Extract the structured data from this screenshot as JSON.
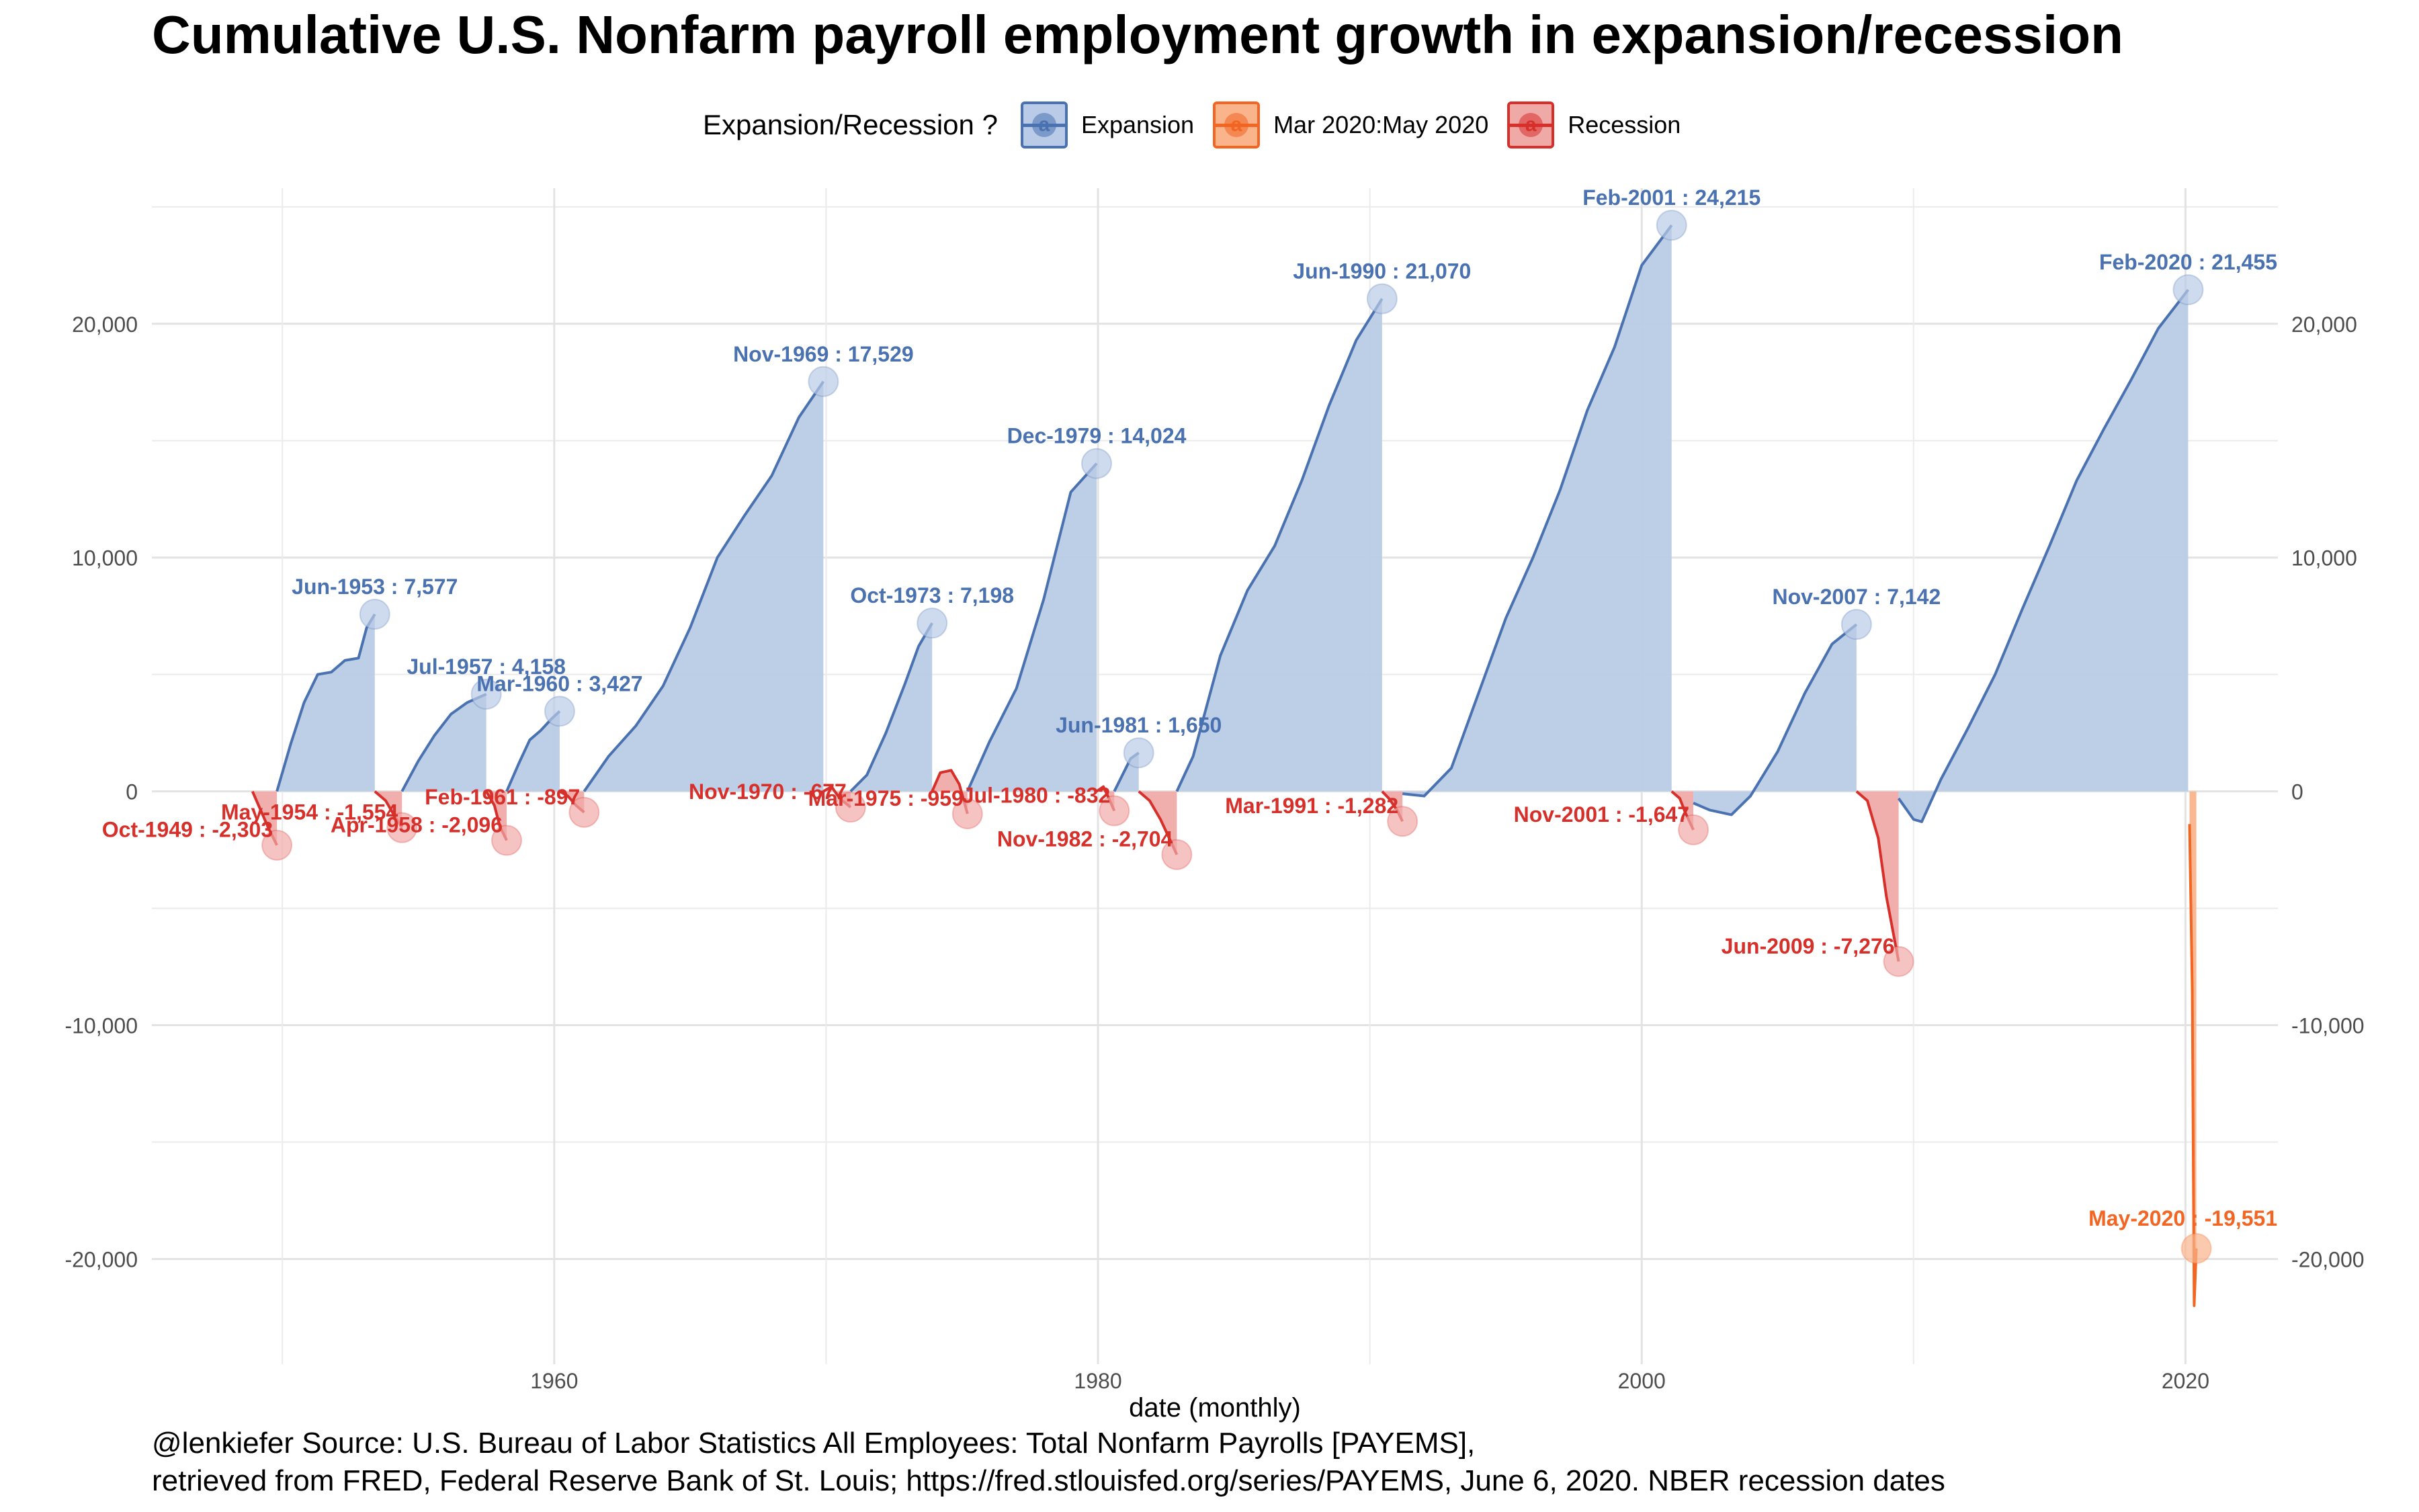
{
  "title": "Cumulative U.S. Nonfarm payroll employment growth in expansion/recession",
  "legend": {
    "title": "Expansion/Recession ?",
    "items": [
      {
        "label": "Expansion",
        "color": "#4a72b0",
        "fill": "#b9cbe6",
        "letter": "a"
      },
      {
        "label": "Mar 2020:May 2020",
        "color": "#f26522",
        "fill": "#f9b48c",
        "letter": "a"
      },
      {
        "label": "Recession",
        "color": "#d7302b",
        "fill": "#efaaa8",
        "letter": "a"
      }
    ]
  },
  "caption": {
    "line1": "@lenkiefer Source: U.S. Bureau of Labor Statistics All Employees: Total Nonfarm Payrolls [PAYEMS],",
    "line2": "retrieved from FRED, Federal Reserve Bank of St. Louis; https://fred.stlouisfed.org/series/PAYEMS, June 6, 2020. NBER recession dates"
  },
  "chart_data": {
    "type": "area",
    "title": "Cumulative U.S. Nonfarm payroll employment growth in expansion/recession",
    "xlabel": "date (monthly)",
    "ylabel": "",
    "xlim": [
      1945.2,
      2023.4
    ],
    "ylim": [
      -24500,
      25800
    ],
    "x_ticks": [
      1960,
      1980,
      2000,
      2020
    ],
    "x_tick_labels": [
      "1960",
      "1980",
      "2000",
      "2020"
    ],
    "y_ticks": [
      -20000,
      -10000,
      0,
      10000,
      20000
    ],
    "y_tick_labels": [
      "-20,000",
      "-10,000",
      "0",
      "10,000",
      "20,000"
    ],
    "grid": true,
    "legend_position": "top",
    "colors": {
      "Expansion": "#4a72b0",
      "Mar 2020:May 2020": "#f26522",
      "Recession": "#d7302b"
    },
    "fills": {
      "Expansion": "#b9cbe6",
      "Mar 2020:May 2020": "#f9b48c",
      "Recession": "#efaaa8"
    },
    "series": [
      {
        "name": "Recession",
        "x": [
          1948.9,
          1949.2,
          1949.5,
          1949.8
        ],
        "y": [
          0,
          -800,
          -1600,
          -2303
        ]
      },
      {
        "name": "Expansion",
        "x": [
          1949.8,
          1950.3,
          1950.8,
          1951.3,
          1951.8,
          1952.3,
          1952.8,
          1953.1,
          1953.4
        ],
        "y": [
          0,
          2000,
          3800,
          5000,
          5100,
          5600,
          5700,
          7000,
          7577
        ]
      },
      {
        "name": "Recession",
        "x": [
          1953.4,
          1953.8,
          1954.1,
          1954.4
        ],
        "y": [
          0,
          -400,
          -1000,
          -1554
        ]
      },
      {
        "name": "Expansion",
        "x": [
          1954.4,
          1955.0,
          1955.6,
          1956.2,
          1956.8,
          1957.5
        ],
        "y": [
          0,
          1300,
          2400,
          3300,
          3800,
          4158
        ]
      },
      {
        "name": "Recession",
        "x": [
          1957.5,
          1957.8,
          1958.0,
          1958.25
        ],
        "y": [
          0,
          -600,
          -1500,
          -2096
        ]
      },
      {
        "name": "Expansion",
        "x": [
          1958.25,
          1958.7,
          1959.1,
          1959.5,
          1959.9,
          1960.2
        ],
        "y": [
          0,
          1200,
          2200,
          2600,
          3100,
          3427
        ]
      },
      {
        "name": "Recession",
        "x": [
          1960.2,
          1960.5,
          1960.8,
          1961.1
        ],
        "y": [
          0,
          -200,
          -600,
          -897
        ]
      },
      {
        "name": "Expansion",
        "x": [
          1961.1,
          1962,
          1963,
          1964,
          1965,
          1966,
          1967,
          1968,
          1969,
          1969.9
        ],
        "y": [
          0,
          1500,
          2800,
          4500,
          7000,
          10000,
          11800,
          13500,
          16000,
          17529
        ]
      },
      {
        "name": "Recession",
        "x": [
          1969.9,
          1970.2,
          1970.5,
          1970.9
        ],
        "y": [
          0,
          200,
          -300,
          -677
        ]
      },
      {
        "name": "Expansion",
        "x": [
          1970.9,
          1971.5,
          1972.2,
          1972.9,
          1973.4,
          1973.9
        ],
        "y": [
          0,
          700,
          2500,
          4600,
          6200,
          7198
        ]
      },
      {
        "name": "Recession",
        "x": [
          1973.9,
          1974.2,
          1974.6,
          1974.9,
          1975.2
        ],
        "y": [
          0,
          800,
          900,
          300,
          -959
        ]
      },
      {
        "name": "Expansion",
        "x": [
          1975.2,
          1976,
          1977,
          1978,
          1979,
          1979.95
        ],
        "y": [
          0,
          2100,
          4400,
          8200,
          12800,
          14024
        ]
      },
      {
        "name": "Recession",
        "x": [
          1979.95,
          1980.2,
          1980.4,
          1980.6
        ],
        "y": [
          0,
          200,
          -300,
          -832
        ]
      },
      {
        "name": "Expansion",
        "x": [
          1980.6,
          1980.9,
          1981.2,
          1981.5
        ],
        "y": [
          0,
          700,
          1400,
          1650
        ]
      },
      {
        "name": "Recession",
        "x": [
          1981.5,
          1981.9,
          1982.3,
          1982.7,
          1982.9
        ],
        "y": [
          0,
          -400,
          -1200,
          -2200,
          -2704
        ]
      },
      {
        "name": "Expansion",
        "x": [
          1982.9,
          1983.5,
          1984.5,
          1985.5,
          1986.5,
          1987.5,
          1988.5,
          1989.5,
          1990.45
        ],
        "y": [
          0,
          1500,
          5800,
          8600,
          10500,
          13300,
          16500,
          19300,
          21070
        ]
      },
      {
        "name": "Recession",
        "x": [
          1990.45,
          1990.7,
          1991.0,
          1991.2
        ],
        "y": [
          0,
          -300,
          -800,
          -1282
        ]
      },
      {
        "name": "Expansion",
        "x": [
          1991.2,
          1992,
          1993,
          1994,
          1995,
          1996,
          1997,
          1998,
          1999,
          2000,
          2001.1
        ],
        "y": [
          -100,
          -200,
          1000,
          4200,
          7400,
          10000,
          12900,
          16300,
          19000,
          22500,
          24215
        ]
      },
      {
        "name": "Recession",
        "x": [
          2001.1,
          2001.4,
          2001.6,
          2001.9
        ],
        "y": [
          0,
          -300,
          -900,
          -1647
        ]
      },
      {
        "name": "Expansion",
        "x": [
          2001.9,
          2002.5,
          2003.3,
          2004,
          2005,
          2006,
          2007,
          2007.9
        ],
        "y": [
          -500,
          -800,
          -1000,
          -200,
          1700,
          4200,
          6300,
          7142
        ]
      },
      {
        "name": "Recession",
        "x": [
          2007.9,
          2008.3,
          2008.7,
          2009.0,
          2009.45
        ],
        "y": [
          0,
          -400,
          -2000,
          -4500,
          -7276
        ]
      },
      {
        "name": "Expansion",
        "x": [
          2009.45,
          2010,
          2010.3,
          2011,
          2012,
          2013,
          2014,
          2015,
          2016,
          2017,
          2018,
          2019,
          2020.1
        ],
        "y": [
          -300,
          -1200,
          -1300,
          500,
          2700,
          5000,
          7800,
          10500,
          13300,
          15500,
          17600,
          19800,
          21455
        ]
      },
      {
        "name": "Mar 2020:May 2020",
        "x": [
          2020.15,
          2020.25,
          2020.32,
          2020.4
        ],
        "y": [
          -1400,
          -8500,
          -22000,
          -19551
        ]
      }
    ],
    "annotations": [
      {
        "label": "Oct-1949 : -2,303",
        "x": 1949.8,
        "y": -2303,
        "type": "Recession"
      },
      {
        "label": "Jun-1953 : 7,577",
        "x": 1953.4,
        "y": 7577,
        "type": "Expansion"
      },
      {
        "label": "May-1954 : -1,554",
        "x": 1954.4,
        "y": -1554,
        "type": "Recession"
      },
      {
        "label": "Jul-1957 : 4,158",
        "x": 1957.5,
        "y": 4158,
        "type": "Expansion"
      },
      {
        "label": "Apr-1958 : -2,096",
        "x": 1958.25,
        "y": -2096,
        "type": "Recession"
      },
      {
        "label": "Mar-1960 : 3,427",
        "x": 1960.2,
        "y": 3427,
        "type": "Expansion"
      },
      {
        "label": "Feb-1961 : -897",
        "x": 1961.1,
        "y": -897,
        "type": "Recession"
      },
      {
        "label": "Nov-1969 : 17,529",
        "x": 1969.9,
        "y": 17529,
        "type": "Expansion"
      },
      {
        "label": "Nov-1970 : -677",
        "x": 1970.9,
        "y": -677,
        "type": "Recession"
      },
      {
        "label": "Oct-1973 : 7,198",
        "x": 1973.9,
        "y": 7198,
        "type": "Expansion"
      },
      {
        "label": "Mar-1975 : -959",
        "x": 1975.2,
        "y": -959,
        "type": "Recession"
      },
      {
        "label": "Dec-1979 : 14,024",
        "x": 1979.95,
        "y": 14024,
        "type": "Expansion"
      },
      {
        "label": "Jul-1980 : -832",
        "x": 1980.6,
        "y": -832,
        "type": "Recession"
      },
      {
        "label": "Jun-1981 : 1,650",
        "x": 1981.5,
        "y": 1650,
        "type": "Expansion"
      },
      {
        "label": "Nov-1982 : -2,704",
        "x": 1982.9,
        "y": -2704,
        "type": "Recession"
      },
      {
        "label": "Jun-1990 : 21,070",
        "x": 1990.45,
        "y": 21070,
        "type": "Expansion"
      },
      {
        "label": "Mar-1991 : -1,282",
        "x": 1991.2,
        "y": -1282,
        "type": "Recession"
      },
      {
        "label": "Feb-2001 : 24,215",
        "x": 2001.1,
        "y": 24215,
        "type": "Expansion"
      },
      {
        "label": "Nov-2001 : -1,647",
        "x": 2001.9,
        "y": -1647,
        "type": "Recession"
      },
      {
        "label": "Nov-2007 : 7,142",
        "x": 2007.9,
        "y": 7142,
        "type": "Expansion"
      },
      {
        "label": "Jun-2009 : -7,276",
        "x": 2009.45,
        "y": -7276,
        "type": "Recession"
      },
      {
        "label": "Feb-2020 : 21,455",
        "x": 2020.1,
        "y": 21455,
        "type": "Expansion"
      },
      {
        "label": "May-2020 : -19,551",
        "x": 2020.4,
        "y": -19551,
        "type": "Mar 2020:May 2020"
      }
    ]
  }
}
